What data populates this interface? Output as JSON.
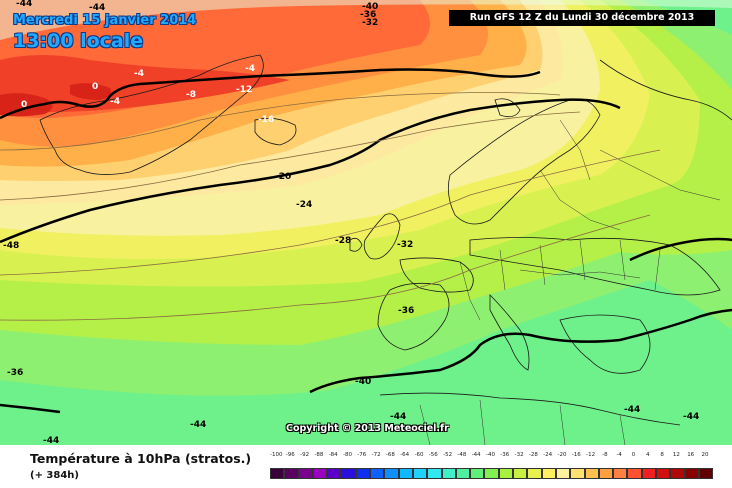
{
  "header": {
    "date": "Mercredi 15 janvier 2014",
    "time": "13:00 locale",
    "run": "Run GFS 12 Z du Lundi 30 décembre 2013"
  },
  "copyright": "Copyright © 2013 Meteociel.fr",
  "variable": {
    "name": "Température à 10hPa (stratos.)",
    "forecast_hours": "(+ 384h)"
  },
  "contour_labels": {
    "m44_top": "-44",
    "m40_top": "-40",
    "m36_top": "-36",
    "m32_top": "-32",
    "m4_a": "-4",
    "zero_a": "0",
    "m4_b": "-4",
    "zero_b": "0",
    "m8": "-8",
    "m4_c": "-4",
    "m12": "-12",
    "m16": "-16",
    "m20": "-20",
    "m24": "-24",
    "m28": "-28",
    "m32_uk": "-32",
    "m36_spain": "-36",
    "m40_bottom": "-40",
    "m36_left": "-36",
    "m48_left": "-48",
    "m44_bl": "-44",
    "m44_bc": "-44",
    "m44_bm": "-44",
    "m44_br1": "-44",
    "m44_br2": "-44",
    "m44_tl": "-44"
  },
  "legend": {
    "labels": [
      "-100",
      "-96",
      "-92",
      "-88",
      "-84",
      "-80",
      "-76",
      "-72",
      "-68",
      "-64",
      "-60",
      "-56",
      "-52",
      "-48",
      "-44",
      "-40",
      "-36",
      "-32",
      "-28",
      "-24",
      "-20",
      "-16",
      "-12",
      "-8",
      "-4",
      "0",
      "4",
      "8",
      "12",
      "16",
      "20"
    ],
    "colors": [
      "#3a003a",
      "#5a0060",
      "#7a0090",
      "#9a00c0",
      "#5a00c8",
      "#2a10d8",
      "#1030f0",
      "#1060ff",
      "#1090ff",
      "#10b8ff",
      "#20d0ff",
      "#30e8f0",
      "#40f0c8",
      "#50f0a0",
      "#60f078",
      "#80f050",
      "#a8f040",
      "#c8f040",
      "#e8f050",
      "#fff060",
      "#fff0a0",
      "#ffe070",
      "#ffc050",
      "#ffa040",
      "#ff8040",
      "#ff5030",
      "#f02020",
      "#d01010",
      "#b00808",
      "#880000",
      "#600000"
    ]
  },
  "colors": {
    "title_blue": "#21a9ff",
    "contour_black": "#000000"
  }
}
